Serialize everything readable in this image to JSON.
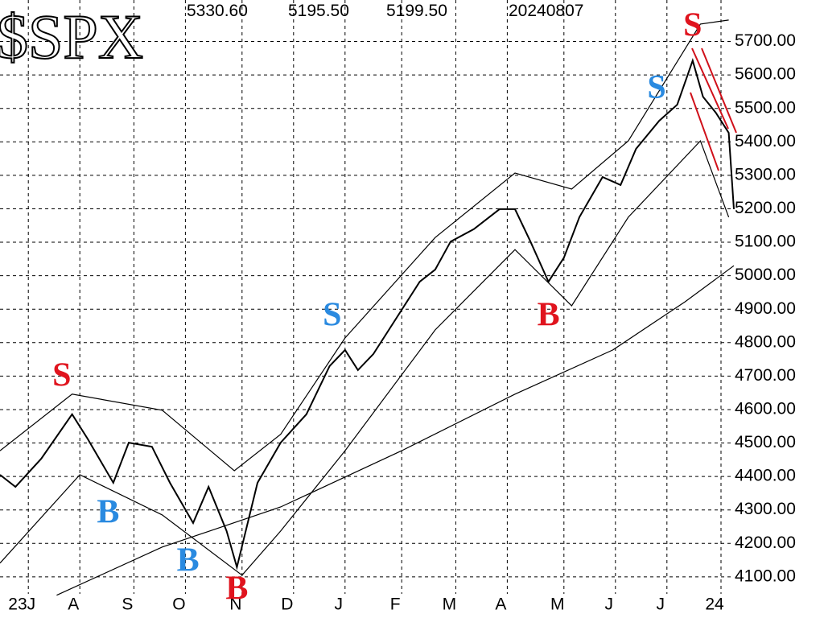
{
  "chart_data": {
    "type": "line",
    "title": "$SPX",
    "header": [
      "5330.60",
      "5195.50",
      "5199.50",
      "20240807"
    ],
    "xlim": [
      0,
      285
    ],
    "xticks": [
      {
        "value": 11,
        "label": "23J"
      },
      {
        "value": 31,
        "label": "A"
      },
      {
        "value": 52,
        "label": "S"
      },
      {
        "value": 72,
        "label": "O"
      },
      {
        "value": 94,
        "label": "N"
      },
      {
        "value": 114,
        "label": "D"
      },
      {
        "value": 134,
        "label": "J"
      },
      {
        "value": 156,
        "label": "F"
      },
      {
        "value": 177,
        "label": "M"
      },
      {
        "value": 197,
        "label": "A"
      },
      {
        "value": 219,
        "label": "M"
      },
      {
        "value": 239,
        "label": "J"
      },
      {
        "value": 259,
        "label": "J"
      },
      {
        "value": 280,
        "label": "24"
      }
    ],
    "ylim": [
      3977,
      5824
    ],
    "yticks": [
      {
        "value": 4100,
        "label": "4100.00"
      },
      {
        "value": 4200,
        "label": "4200.00"
      },
      {
        "value": 4300,
        "label": "4300.00"
      },
      {
        "value": 4400,
        "label": "4400.00"
      },
      {
        "value": 4500,
        "label": "4500.00"
      },
      {
        "value": 4600,
        "label": "4600.00"
      },
      {
        "value": 4700,
        "label": "4700.00"
      },
      {
        "value": 4800,
        "label": "4800.00"
      },
      {
        "value": 4900,
        "label": "4900.00"
      },
      {
        "value": 5000,
        "label": "5000.00"
      },
      {
        "value": 5100,
        "label": "5100.00"
      },
      {
        "value": 5200,
        "label": "5200.00"
      },
      {
        "value": 5300,
        "label": "5300.00"
      },
      {
        "value": 5400,
        "label": "5400.00"
      },
      {
        "value": 5500,
        "label": "5500.00"
      },
      {
        "value": 5600,
        "label": "5600.00"
      },
      {
        "value": 5700,
        "label": "5700.00"
      }
    ],
    "grid": true,
    "series": [
      {
        "color": "#000000",
        "x": [
          0,
          6,
          16,
          28,
          34,
          44,
          50,
          59,
          66,
          75,
          81,
          88,
          92,
          100,
          109,
          119,
          128,
          134,
          139,
          145,
          153,
          163,
          169,
          175,
          184,
          194,
          200,
          206,
          213,
          219,
          225,
          234,
          241,
          247,
          256,
          263,
          269,
          273,
          278,
          283,
          285
        ],
        "values": [
          4405,
          4369,
          4453,
          4586,
          4513,
          4381,
          4501,
          4489,
          4381,
          4261,
          4369,
          4237,
          4129,
          4381,
          4501,
          4586,
          4730,
          4778,
          4718,
          4766,
          4862,
          4982,
          5018,
          5102,
          5139,
          5199,
          5199,
          5102,
          4982,
          5054,
          5175,
          5295,
          5271,
          5379,
          5463,
          5511,
          5643,
          5535,
          5487,
          5427,
          5199
        ]
      },
      {
        "color": "#000000",
        "x": [
          22,
          63,
          109,
          156,
          200,
          238,
          266,
          285
        ],
        "values": [
          4045,
          4189,
          4309,
          4477,
          4646,
          4778,
          4922,
          5030
        ]
      },
      {
        "color": "#000000",
        "x": [
          0,
          28,
          63,
          91,
          109,
          134,
          169,
          200,
          222,
          244,
          272,
          283
        ],
        "values": [
          4477,
          4646,
          4598,
          4417,
          4526,
          4814,
          5114,
          5307,
          5259,
          5403,
          5752,
          5764
        ]
      },
      {
        "color": "#000000",
        "x": [
          0,
          31,
          63,
          94,
          109,
          134,
          169,
          200,
          222,
          244,
          272,
          283
        ],
        "values": [
          4141,
          4405,
          4285,
          4105,
          4237,
          4477,
          4838,
          5078,
          4910,
          5175,
          5403,
          5175
        ]
      }
    ],
    "annotations": [
      {
        "text": "S",
        "x": 24,
        "y": 4694,
        "color": "#e0141e"
      },
      {
        "text": "B",
        "x": 42,
        "y": 4285,
        "color": "#2a8ae0"
      },
      {
        "text": "B",
        "x": 73,
        "y": 4141,
        "color": "#2a8ae0"
      },
      {
        "text": "B",
        "x": 92,
        "y": 4057,
        "color": "#e0141e"
      },
      {
        "text": "S",
        "x": 129,
        "y": 4874,
        "color": "#2a8ae0"
      },
      {
        "text": "B",
        "x": 213,
        "y": 4874,
        "color": "#e0141e"
      },
      {
        "text": "S",
        "x": 255,
        "y": 5554,
        "color": "#2a8ae0"
      },
      {
        "text": "S",
        "x": 269,
        "y": 5740,
        "color": "#e0141e"
      }
    ]
  }
}
